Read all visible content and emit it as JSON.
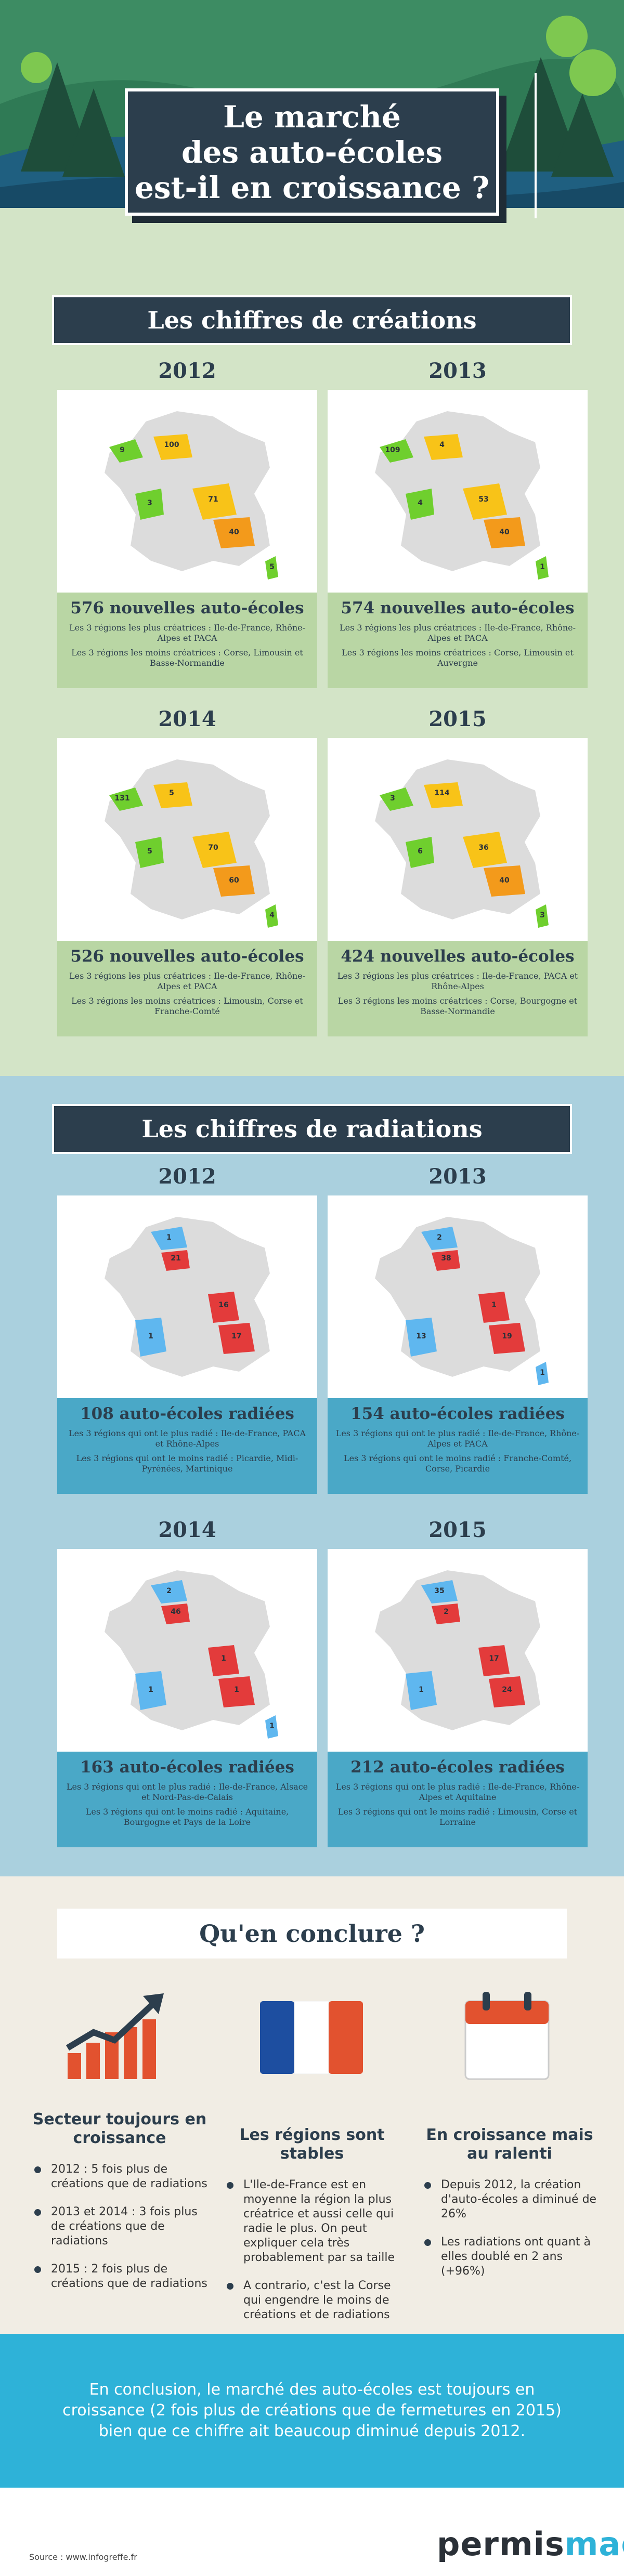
{
  "header": {
    "title_lines": [
      "Le marché",
      "des auto-écoles",
      "est-il en croissance ?"
    ]
  },
  "creations": {
    "section_title": "Les chiffres de créations",
    "panels": [
      {
        "year": "2012",
        "headline": "576 nouvelles auto-écoles",
        "most": "Les 3 régions les plus créatrices : Ile-de-France, Rhône-Alpes et PACA",
        "least": "Les 3 régions les moins créatrices : Corse, Limousin et Basse-Normandie",
        "labels": [
          "9",
          "100",
          "3",
          "71",
          "40",
          "5"
        ]
      },
      {
        "year": "2013",
        "headline": "574 nouvelles auto-écoles",
        "most": "Les 3 régions les plus créatrices : Ile-de-France, Rhône-Alpes et PACA",
        "least": "Les 3 régions les moins créatrices : Corse, Limousin et Auvergne",
        "labels": [
          "109",
          "4",
          "4",
          "53",
          "40",
          "1"
        ]
      },
      {
        "year": "2014",
        "headline": "526 nouvelles auto-écoles",
        "most": "Les 3 régions les plus créatrices : Ile-de-France, Rhône-Alpes et PACA",
        "least": "Les 3 régions les moins créatrices : Limousin, Corse et Franche-Comté",
        "labels": [
          "131",
          "5",
          "5",
          "70",
          "60",
          "4"
        ]
      },
      {
        "year": "2015",
        "headline": "424 nouvelles auto-écoles",
        "most": "Les 3 régions les plus créatrices : Ile-de-France, PACA et Rhône-Alpes",
        "least": "Les 3 régions les moins créatrices : Corse, Bourgogne et Basse-Normandie",
        "labels": [
          "3",
          "114",
          "6",
          "36",
          "40",
          "3"
        ]
      }
    ]
  },
  "radiations": {
    "section_title": "Les chiffres de radiations",
    "panels": [
      {
        "year": "2012",
        "headline": "108 auto-écoles radiées",
        "most": "Les 3 régions qui ont le plus radié : Ile-de-France, PACA et Rhône-Alpes",
        "least": "Les 3 régions qui ont le moins radié : Picardie, Midi-Pyrénées, Martinique",
        "labels": [
          "1",
          "21",
          "16",
          "17",
          "1"
        ]
      },
      {
        "year": "2013",
        "headline": "154 auto-écoles radiées",
        "most": "Les 3 régions qui ont le plus radié : Ile-de-France, Rhône-Alpes et PACA",
        "least": "Les 3 régions qui ont le moins radié : Franche-Comté, Corse, Picardie",
        "labels": [
          "2",
          "38",
          "1",
          "19",
          "13",
          "1"
        ]
      },
      {
        "year": "2014",
        "headline": "163 auto-écoles radiées",
        "most": "Les 3 régions qui ont le plus radié : Ile-de-France, Alsace et Nord-Pas-de-Calais",
        "least": "Les 3 régions qui ont le moins radié : Aquitaine, Bourgogne et Pays de la Loire",
        "labels": [
          "2",
          "46",
          "1",
          "1",
          "1",
          "1"
        ]
      },
      {
        "year": "2015",
        "headline": "212 auto-écoles radiées",
        "most": "Les 3 régions qui ont le plus radié : Ile-de-France, Rhône-Alpes et Aquitaine",
        "least": "Les 3 régions qui ont le moins radié : Limousin, Corse et Lorraine",
        "labels": [
          "35",
          "2",
          "17",
          "24",
          "1"
        ]
      }
    ]
  },
  "conclusion": {
    "section_title": "Qu'en conclure ?",
    "col1": {
      "title": "Secteur toujours en croissance",
      "items": [
        "2012 : 5 fois plus de créations que de radiations",
        "2013 et 2014 : 3 fois plus de créations que de radiations",
        "2015 : 2 fois plus de créations que de radiations"
      ]
    },
    "col2": {
      "title": "Les régions sont stables",
      "items": [
        "L'Ile-de-France est en moyenne la région la plus créatrice et aussi celle qui radie le plus. On peut expliquer cela très probablement par sa taille",
        "A contrario, c'est la Corse qui engendre le moins de créations et de radiations"
      ]
    },
    "col3": {
      "title": "En croissance mais au ralenti",
      "items": [
        "Depuis 2012, la création d'auto-écoles a diminué de 26%",
        "Les radiations ont quant à elles doublé en 2 ans (+96%)"
      ]
    }
  },
  "footer": {
    "conclusion_text": "En conclusion, le marché des auto-écoles est toujours en croissance (2 fois plus de créations que de fermetures en 2015) bien que ce chiffre ait beaucoup diminué depuis 2012.",
    "source": "Source : www.infogreffe.fr",
    "brand_permis": "permis",
    "brand_mag": "mag"
  },
  "colors": {
    "dark_navy": "#2c3e4d",
    "green_bg": "#d3e4c7",
    "blue_bg": "#aad0de",
    "accent_blue": "#2eb2d8",
    "map_grey": "#dcdcdc",
    "green_region": "#6fcf2e",
    "yellow_region": "#f8c318",
    "orange_region": "#f39a1b",
    "red_region": "#e33b3b",
    "light_blue_region": "#5fb7ef"
  }
}
